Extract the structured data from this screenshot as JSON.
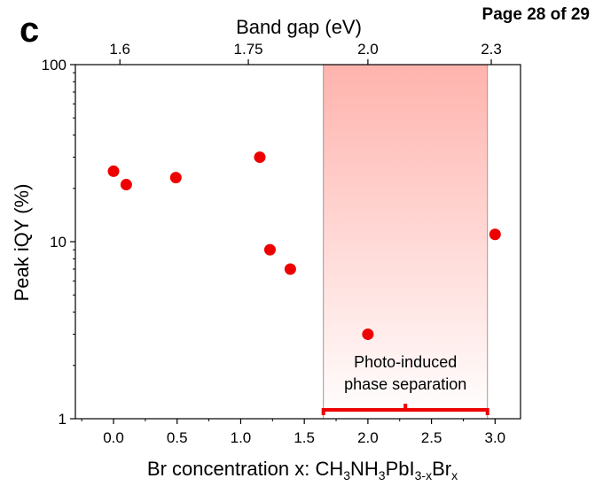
{
  "page_label": "Page 28 of 29",
  "panel_letter": "c",
  "chart_data": {
    "type": "scatter",
    "ylabel": "Peak iQY (%)",
    "xlabel": "Br concentration x: CH3NH3PbI3-xBrx",
    "xlabel_parts": {
      "prefix": "Br concentration x: CH",
      "sub1": "3",
      "mid1": "NH",
      "sub2": "3",
      "mid2": "PbI",
      "sub3": "3-x",
      "mid3": "Br",
      "sub4": "x"
    },
    "top_axis_label": "Band gap (eV)",
    "xlim": [
      -0.3,
      3.2
    ],
    "ylim": [
      1,
      100
    ],
    "yscale": "log",
    "x_ticks": [
      0.0,
      0.5,
      1.0,
      1.5,
      2.0,
      2.5,
      3.0
    ],
    "x_tick_labels": [
      "0.0",
      "0.5",
      "1.0",
      "1.5",
      "2.0",
      "2.5",
      "3.0"
    ],
    "y_ticks": [
      1,
      10,
      100
    ],
    "y_tick_labels": [
      "1",
      "10",
      "100"
    ],
    "top_ticks": [
      {
        "label": "1.6",
        "x": 0.05
      },
      {
        "label": "1.75",
        "x": 1.06
      },
      {
        "label": "2.0",
        "x": 2.0
      },
      {
        "label": "2.3",
        "x": 2.97
      }
    ],
    "points": [
      {
        "x": 0.0,
        "y": 25
      },
      {
        "x": 0.1,
        "y": 21
      },
      {
        "x": 0.49,
        "y": 23
      },
      {
        "x": 1.15,
        "y": 30
      },
      {
        "x": 1.23,
        "y": 9
      },
      {
        "x": 1.39,
        "y": 7
      },
      {
        "x": 2.0,
        "y": 3
      },
      {
        "x": 3.0,
        "y": 11
      }
    ],
    "region": {
      "x_start": 1.65,
      "x_end": 2.94,
      "label_line1": "Photo-induced",
      "label_line2": "phase  separation"
    },
    "colors": {
      "points": "#ee0000",
      "region_top": "#ffb3ad",
      "region_bottom": "#ffffff",
      "bracket": "#ee0000"
    }
  }
}
